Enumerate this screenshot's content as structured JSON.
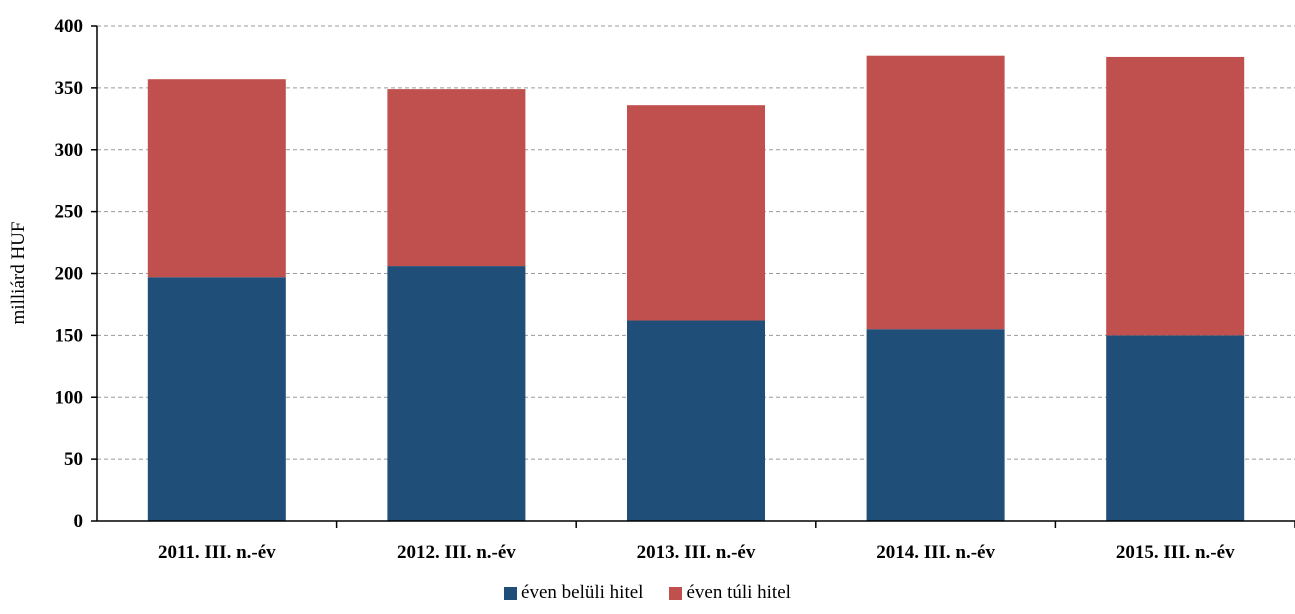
{
  "chart_data": {
    "type": "bar",
    "stacked": true,
    "categories": [
      "2011. III. n.-év",
      "2012. III. n.-év",
      "2013. III. n.-év",
      "2014. III. n.-év",
      "2015. III. n.-év"
    ],
    "series": [
      {
        "name": "éven belüli hitel",
        "color": "#1f4e79",
        "values": [
          197,
          206,
          162,
          155,
          150
        ]
      },
      {
        "name": "éven túli hitel",
        "color": "#c0504d",
        "values": [
          160,
          143,
          174,
          221,
          225
        ]
      }
    ],
    "ylabel": "milliárd HUF",
    "ylim": [
      0,
      400
    ],
    "yticks": [
      0,
      50,
      100,
      150,
      200,
      250,
      300,
      350,
      400
    ],
    "grid": true,
    "legend": "bottom-center"
  }
}
